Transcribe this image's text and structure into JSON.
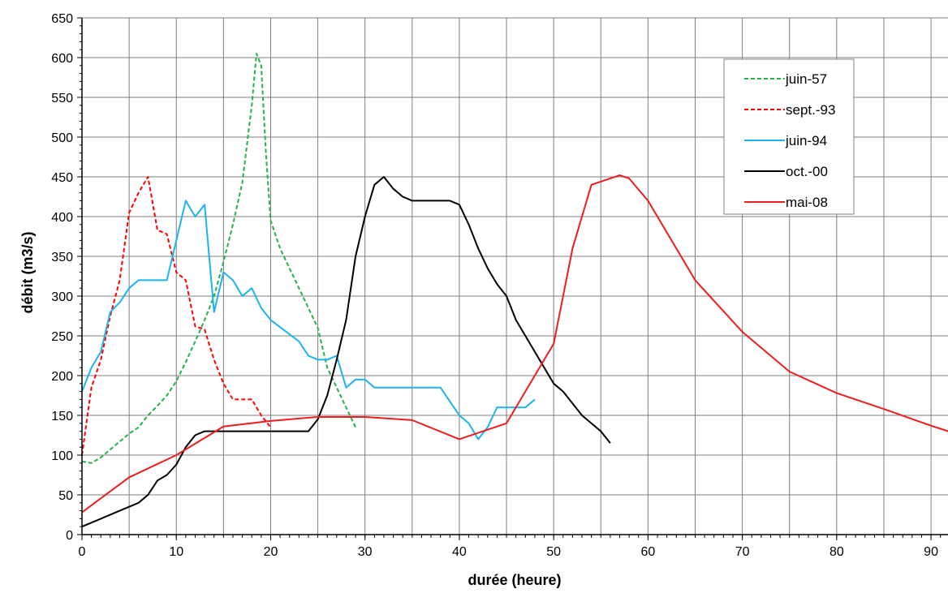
{
  "chart_data": {
    "type": "line",
    "title": "",
    "xlabel": "durée (heure)",
    "ylabel": "débit (m3/s)",
    "xlim": [
      0,
      91.8
    ],
    "ylim": [
      0,
      650
    ],
    "xticks": [
      0,
      10,
      20,
      30,
      40,
      50,
      60,
      70,
      80,
      90
    ],
    "yticks": [
      0,
      50,
      100,
      150,
      200,
      250,
      300,
      350,
      400,
      450,
      500,
      550,
      600,
      650
    ],
    "x_minor_step": 5,
    "grid": true,
    "legend_position": "top-right",
    "series": [
      {
        "name": "juin-57",
        "color": "#22b14c",
        "dash": true,
        "points": [
          [
            0,
            92
          ],
          [
            1,
            90
          ],
          [
            2,
            97
          ],
          [
            3,
            107
          ],
          [
            4,
            117
          ],
          [
            5,
            127
          ],
          [
            6,
            135
          ],
          [
            7,
            150
          ],
          [
            8,
            162
          ],
          [
            9,
            175
          ],
          [
            10,
            193
          ],
          [
            11,
            217
          ],
          [
            12,
            243
          ],
          [
            13,
            270
          ],
          [
            14,
            300
          ],
          [
            15,
            343
          ],
          [
            16,
            390
          ],
          [
            17,
            443
          ],
          [
            18,
            540
          ],
          [
            18.5,
            605
          ],
          [
            19,
            590
          ],
          [
            19.5,
            480
          ],
          [
            20,
            395
          ],
          [
            21,
            360
          ],
          [
            22,
            335
          ],
          [
            23,
            310
          ],
          [
            24,
            285
          ],
          [
            25,
            260
          ],
          [
            26,
            210
          ],
          [
            27,
            185
          ],
          [
            28,
            160
          ],
          [
            29,
            135
          ]
        ]
      },
      {
        "name": "sept.-93",
        "color": "#ff0000",
        "dash": true,
        "points": [
          [
            0,
            100
          ],
          [
            1,
            185
          ],
          [
            2,
            220
          ],
          [
            3,
            275
          ],
          [
            4,
            320
          ],
          [
            5,
            405
          ],
          [
            6,
            430
          ],
          [
            7,
            450
          ],
          [
            8,
            383
          ],
          [
            9,
            378
          ],
          [
            10,
            330
          ],
          [
            11,
            320
          ],
          [
            12,
            262
          ],
          [
            13,
            258
          ],
          [
            14,
            220
          ],
          [
            15,
            190
          ],
          [
            16,
            170
          ],
          [
            17,
            170
          ],
          [
            18,
            170
          ],
          [
            19,
            150
          ],
          [
            20,
            135
          ]
        ]
      },
      {
        "name": "juin-94",
        "color": "#1cb3ec",
        "dash": false,
        "points": [
          [
            0,
            180
          ],
          [
            1,
            210
          ],
          [
            2,
            230
          ],
          [
            3,
            280
          ],
          [
            4,
            292
          ],
          [
            5,
            310
          ],
          [
            6,
            320
          ],
          [
            7,
            320
          ],
          [
            8,
            320
          ],
          [
            9,
            320
          ],
          [
            10,
            370
          ],
          [
            11,
            420
          ],
          [
            12,
            400
          ],
          [
            13,
            415
          ],
          [
            14,
            280
          ],
          [
            15,
            330
          ],
          [
            16,
            320
          ],
          [
            17,
            300
          ],
          [
            18,
            310
          ],
          [
            19,
            285
          ],
          [
            20,
            270
          ],
          [
            22,
            252
          ],
          [
            23,
            243
          ],
          [
            24,
            225
          ],
          [
            25,
            220
          ],
          [
            26,
            220
          ],
          [
            27,
            225
          ],
          [
            28,
            185
          ],
          [
            29,
            195
          ],
          [
            30,
            195
          ],
          [
            31,
            185
          ],
          [
            35,
            185
          ],
          [
            38,
            185
          ],
          [
            40,
            150
          ],
          [
            41,
            140
          ],
          [
            42,
            120
          ],
          [
            43,
            135
          ],
          [
            44,
            160
          ],
          [
            46,
            160
          ],
          [
            47,
            160
          ],
          [
            48,
            170
          ]
        ]
      },
      {
        "name": "oct.-00",
        "color": "#000000",
        "dash": false,
        "points": [
          [
            0,
            10
          ],
          [
            2,
            20
          ],
          [
            4,
            30
          ],
          [
            6,
            40
          ],
          [
            7,
            50
          ],
          [
            8,
            68
          ],
          [
            9,
            75
          ],
          [
            10,
            88
          ],
          [
            11,
            110
          ],
          [
            12,
            125
          ],
          [
            13,
            130
          ],
          [
            14,
            130
          ],
          [
            16,
            130
          ],
          [
            18,
            130
          ],
          [
            20,
            130
          ],
          [
            22,
            130
          ],
          [
            24,
            130
          ],
          [
            25,
            145
          ],
          [
            26,
            175
          ],
          [
            27,
            220
          ],
          [
            28,
            270
          ],
          [
            29,
            350
          ],
          [
            30,
            400
          ],
          [
            31,
            440
          ],
          [
            32,
            450
          ],
          [
            33,
            435
          ],
          [
            34,
            425
          ],
          [
            35,
            420
          ],
          [
            37,
            420
          ],
          [
            39,
            420
          ],
          [
            40,
            415
          ],
          [
            41,
            390
          ],
          [
            42,
            360
          ],
          [
            43,
            335
          ],
          [
            44,
            315
          ],
          [
            45,
            300
          ],
          [
            46,
            270
          ],
          [
            47,
            250
          ],
          [
            48,
            230
          ],
          [
            49,
            210
          ],
          [
            50,
            190
          ],
          [
            51,
            180
          ],
          [
            53,
            150
          ],
          [
            55,
            130
          ],
          [
            56,
            115
          ]
        ]
      },
      {
        "name": "mai-08",
        "color": "#ee1c1c",
        "dash": false,
        "points": [
          [
            0,
            28
          ],
          [
            5,
            72
          ],
          [
            10,
            100
          ],
          [
            15,
            136
          ],
          [
            20,
            143
          ],
          [
            25,
            148
          ],
          [
            30,
            148
          ],
          [
            35,
            144
          ],
          [
            40,
            120
          ],
          [
            45,
            140
          ],
          [
            50,
            240
          ],
          [
            52,
            360
          ],
          [
            54,
            440
          ],
          [
            57,
            452
          ],
          [
            58,
            448
          ],
          [
            60,
            420
          ],
          [
            65,
            320
          ],
          [
            70,
            255
          ],
          [
            75,
            205
          ],
          [
            80,
            178
          ],
          [
            85,
            158
          ],
          [
            90,
            137
          ],
          [
            91.8,
            130
          ]
        ]
      }
    ]
  }
}
